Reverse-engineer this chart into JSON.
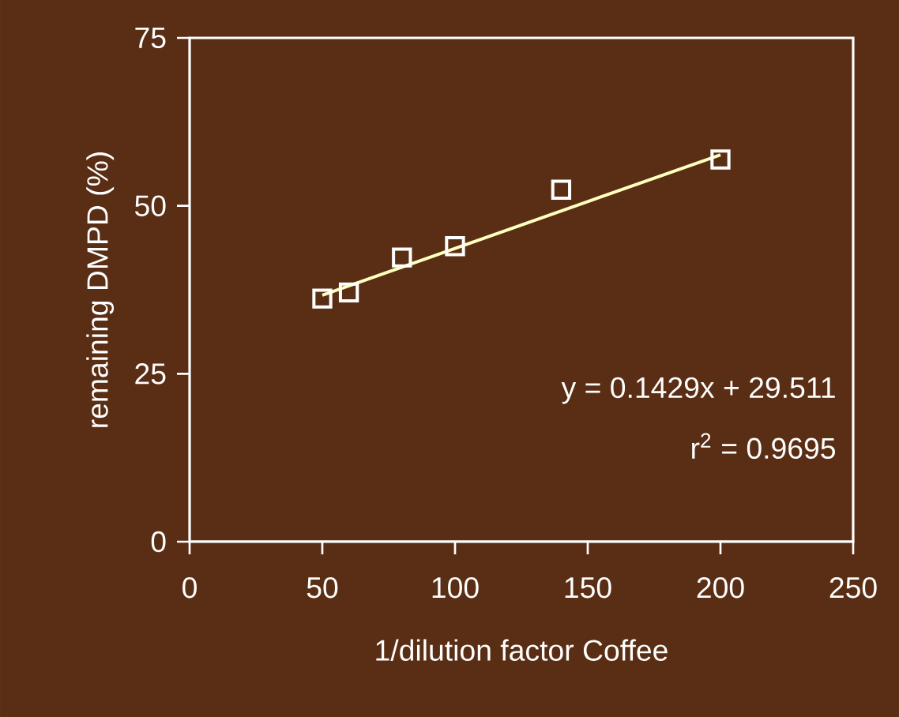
{
  "chart_data": {
    "type": "scatter",
    "xlabel": "1/dilution factor   Coffee",
    "ylabel": "remaining DMPD (%)",
    "xlim": [
      0,
      250
    ],
    "ylim": [
      0,
      75
    ],
    "xticks": [
      0,
      50,
      100,
      150,
      200,
      250
    ],
    "yticks": [
      0,
      25,
      50,
      75
    ],
    "series": [
      {
        "marker": "square",
        "color": "#ffffff",
        "x": [
          50,
          60,
          80,
          100,
          140,
          200
        ],
        "values": [
          36.2,
          37.1,
          42.3,
          44.0,
          52.4,
          56.9
        ]
      },
      {
        "type": "line",
        "marker": "none",
        "color": "#ffffc0",
        "x": [
          50,
          200
        ],
        "values": [
          36.7,
          57.6
        ]
      }
    ],
    "annotations": [
      "y = 0.1429x + 29.511",
      "r$^{2}$ = 0.9695"
    ]
  }
}
